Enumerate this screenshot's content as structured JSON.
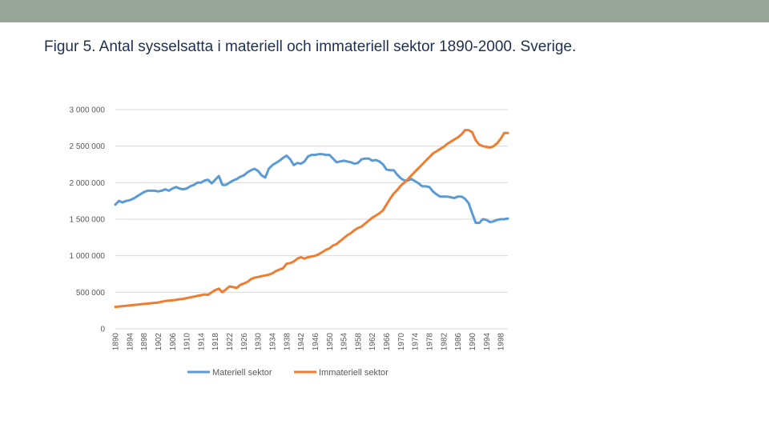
{
  "slide": {
    "title": "Figur 5. Antal sysselsatta i materiell och immateriell sektor 1890-2000. Sverige."
  },
  "colors": {
    "topbar": "#97a497",
    "grid": "#d9d9d9",
    "axis_text": "#595959",
    "materiell": "#5b9bd5",
    "immateriell": "#ed7d31"
  },
  "chart_data": {
    "type": "line",
    "title": "",
    "xlabel": "",
    "ylabel": "",
    "ylim": [
      0,
      3000000
    ],
    "yticks": [
      0,
      500000,
      1000000,
      1500000,
      2000000,
      2500000,
      3000000
    ],
    "ytick_labels": [
      "0",
      "500 000",
      "1 000 000",
      "1 500 000",
      "2 000 000",
      "2 500 000",
      "3 000 000"
    ],
    "x": [
      1890,
      1891,
      1892,
      1893,
      1894,
      1895,
      1896,
      1897,
      1898,
      1899,
      1900,
      1901,
      1902,
      1903,
      1904,
      1905,
      1906,
      1907,
      1908,
      1909,
      1910,
      1911,
      1912,
      1913,
      1914,
      1915,
      1916,
      1917,
      1918,
      1919,
      1920,
      1921,
      1922,
      1923,
      1924,
      1925,
      1926,
      1927,
      1928,
      1929,
      1930,
      1931,
      1932,
      1933,
      1934,
      1935,
      1936,
      1937,
      1938,
      1939,
      1940,
      1941,
      1942,
      1943,
      1944,
      1945,
      1946,
      1947,
      1948,
      1949,
      1950,
      1951,
      1952,
      1953,
      1954,
      1955,
      1956,
      1957,
      1958,
      1959,
      1960,
      1961,
      1962,
      1963,
      1964,
      1965,
      1966,
      1967,
      1968,
      1969,
      1970,
      1971,
      1972,
      1973,
      1974,
      1975,
      1976,
      1977,
      1978,
      1979,
      1980,
      1981,
      1982,
      1983,
      1984,
      1985,
      1986,
      1987,
      1988,
      1989,
      1990,
      1991,
      1992,
      1993,
      1994,
      1995,
      1996,
      1997,
      1998,
      1999,
      2000
    ],
    "xtick_labels": [
      "1890",
      "1894",
      "1898",
      "1902",
      "1906",
      "1910",
      "1914",
      "1918",
      "1922",
      "1926",
      "1930",
      "1934",
      "1938",
      "1942",
      "1946",
      "1950",
      "1954",
      "1958",
      "1962",
      "1966",
      "1970",
      "1974",
      "1978",
      "1982",
      "1986",
      "1990",
      "1994",
      "1998"
    ],
    "legend_position": "bottom",
    "series": [
      {
        "name": "Materiell sektor",
        "values": [
          1700000,
          1750000,
          1730000,
          1750000,
          1760000,
          1780000,
          1810000,
          1840000,
          1870000,
          1890000,
          1890000,
          1890000,
          1880000,
          1890000,
          1910000,
          1890000,
          1920000,
          1940000,
          1920000,
          1910000,
          1920000,
          1950000,
          1970000,
          2000000,
          2000000,
          2030000,
          2040000,
          1990000,
          2040000,
          2090000,
          1970000,
          1970000,
          2000000,
          2030000,
          2050000,
          2080000,
          2100000,
          2140000,
          2170000,
          2190000,
          2160000,
          2100000,
          2070000,
          2190000,
          2240000,
          2270000,
          2300000,
          2340000,
          2370000,
          2320000,
          2240000,
          2270000,
          2260000,
          2290000,
          2360000,
          2380000,
          2380000,
          2390000,
          2390000,
          2380000,
          2380000,
          2330000,
          2280000,
          2290000,
          2300000,
          2290000,
          2280000,
          2260000,
          2270000,
          2320000,
          2330000,
          2330000,
          2300000,
          2310000,
          2290000,
          2250000,
          2180000,
          2170000,
          2170000,
          2110000,
          2060000,
          2030000,
          2030000,
          2050000,
          2020000,
          1990000,
          1950000,
          1950000,
          1940000,
          1880000,
          1840000,
          1810000,
          1810000,
          1810000,
          1800000,
          1790000,
          1810000,
          1810000,
          1780000,
          1720000,
          1580000,
          1450000,
          1450000,
          1500000,
          1490000,
          1460000,
          1470000,
          1490000,
          1500000,
          1500000,
          1510000
        ]
      },
      {
        "name": "Immateriell sektor",
        "values": [
          300000,
          305000,
          310000,
          315000,
          320000,
          325000,
          330000,
          335000,
          340000,
          345000,
          350000,
          355000,
          360000,
          370000,
          380000,
          385000,
          390000,
          395000,
          405000,
          410000,
          420000,
          430000,
          440000,
          450000,
          460000,
          470000,
          465000,
          500000,
          530000,
          550000,
          500000,
          540000,
          580000,
          570000,
          560000,
          600000,
          620000,
          640000,
          680000,
          700000,
          710000,
          720000,
          730000,
          740000,
          760000,
          790000,
          810000,
          830000,
          890000,
          900000,
          920000,
          960000,
          980000,
          960000,
          980000,
          990000,
          1000000,
          1020000,
          1050000,
          1080000,
          1100000,
          1140000,
          1160000,
          1200000,
          1240000,
          1280000,
          1310000,
          1350000,
          1380000,
          1400000,
          1440000,
          1480000,
          1520000,
          1550000,
          1580000,
          1620000,
          1700000,
          1780000,
          1850000,
          1900000,
          1960000,
          2000000,
          2050000,
          2100000,
          2150000,
          2200000,
          2250000,
          2300000,
          2350000,
          2400000,
          2430000,
          2460000,
          2490000,
          2530000,
          2560000,
          2590000,
          2620000,
          2660000,
          2720000,
          2720000,
          2690000,
          2580000,
          2520000,
          2500000,
          2490000,
          2480000,
          2500000,
          2540000,
          2600000,
          2680000,
          2680000
        ]
      }
    ]
  }
}
